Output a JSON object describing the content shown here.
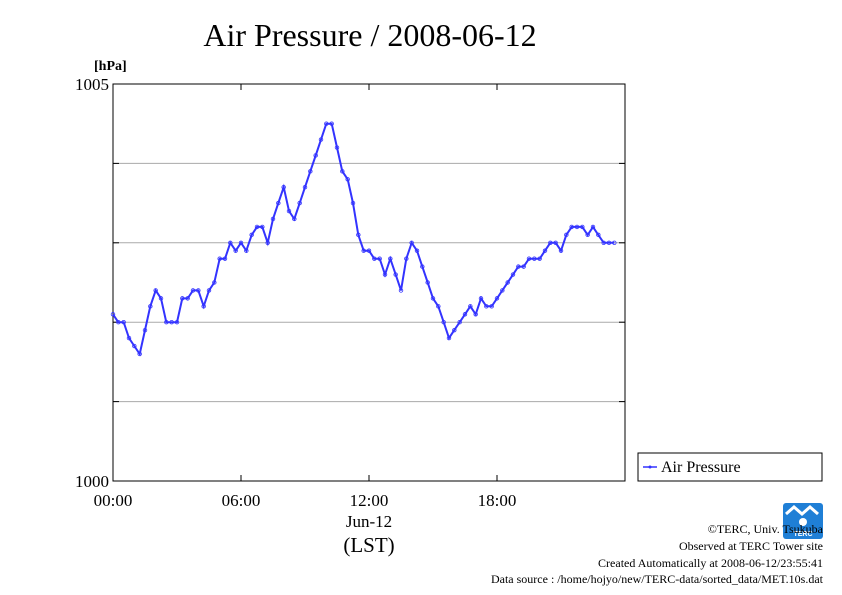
{
  "chart_data": {
    "type": "line",
    "title": "Air Pressure / 2008-06-12",
    "ylabel": "[hPa]",
    "xlabel": "(LST)",
    "date_label": "Jun-12",
    "ylim": [
      1000,
      1005
    ],
    "xlim": [
      0,
      23.5
    ],
    "y_ticks": [
      1000,
      1001,
      1002,
      1003,
      1004,
      1005
    ],
    "y_tick_labels": [
      "1000",
      "",
      "",
      "",
      "",
      "1005"
    ],
    "x_ticks": [
      0,
      6,
      12,
      18
    ],
    "x_tick_labels": [
      "00:00",
      "06:00",
      "12:00",
      "18:00"
    ],
    "grid": true,
    "legend": "right",
    "series": [
      {
        "name": "Air Pressure",
        "color": "#3333ff",
        "x": [
          0,
          0.25,
          0.5,
          0.75,
          1.0,
          1.25,
          1.5,
          1.75,
          2.0,
          2.25,
          2.5,
          2.75,
          3.0,
          3.25,
          3.5,
          3.75,
          4.0,
          4.25,
          4.5,
          4.75,
          5.0,
          5.25,
          5.5,
          5.75,
          6.0,
          6.25,
          6.5,
          6.75,
          7.0,
          7.25,
          7.5,
          7.75,
          8.0,
          8.25,
          8.5,
          8.75,
          9.0,
          9.25,
          9.5,
          9.75,
          10.0,
          10.25,
          10.5,
          10.75,
          11.0,
          11.25,
          11.5,
          11.75,
          12.0,
          12.25,
          12.5,
          12.75,
          13.0,
          13.25,
          13.5,
          13.75,
          14.0,
          14.25,
          14.5,
          14.75,
          15.0,
          15.25,
          15.5,
          15.75,
          16.0,
          16.25,
          16.5,
          16.75,
          17.0,
          17.25,
          17.5,
          17.75,
          18.0,
          18.25,
          18.5,
          18.75,
          19.0,
          19.25,
          19.5,
          19.75,
          20.0,
          20.25,
          20.5,
          20.75,
          21.0,
          21.25,
          21.5,
          21.75,
          22.0,
          22.25,
          22.5,
          22.75,
          23.0,
          23.25,
          23.5
        ],
        "values": [
          1002.1,
          1002.0,
          1002.0,
          1001.8,
          1001.7,
          1001.6,
          1001.9,
          1002.2,
          1002.4,
          1002.3,
          1002.0,
          1002.0,
          1002.0,
          1002.3,
          1002.3,
          1002.4,
          1002.4,
          1002.2,
          1002.4,
          1002.5,
          1002.8,
          1002.8,
          1003.0,
          1002.9,
          1003.0,
          1002.9,
          1003.1,
          1003.2,
          1003.2,
          1003.0,
          1003.3,
          1003.5,
          1003.7,
          1003.4,
          1003.3,
          1003.5,
          1003.7,
          1003.9,
          1004.1,
          1004.3,
          1004.5,
          1004.5,
          1004.2,
          1003.9,
          1003.8,
          1003.5,
          1003.1,
          1002.9,
          1002.9,
          1002.8,
          1002.8,
          1002.6,
          1002.8,
          1002.6,
          1002.4,
          1002.8,
          1003.0,
          1002.9,
          1002.7,
          1002.5,
          1002.3,
          1002.2,
          1002.0,
          1001.8,
          1001.9,
          1002.0,
          1002.1,
          1002.2,
          1002.1,
          1002.3,
          1002.2,
          1002.2,
          1002.3,
          1002.4,
          1002.5,
          1002.6,
          1002.7,
          1002.7,
          1002.8,
          1002.8,
          1002.8,
          1002.9,
          1003.0,
          1003.0,
          1002.9,
          1003.1,
          1003.2,
          1003.2,
          1003.2,
          1003.1,
          1003.2,
          1003.1,
          1003.0,
          1003.0,
          1003.0
        ]
      }
    ]
  },
  "footer": {
    "credit": "©TERC, Univ. Tsukuba",
    "observed": "Observed at TERC Tower site",
    "created": "Created Automatically at 2008-06-12/23:55:41",
    "source": "Data source : /home/hojyo/new/TERC-data/sorted_data/MET.10s.dat"
  },
  "logo": {
    "text": "TERC",
    "color": "#1f7fd6",
    "icon": "terc-logo-icon"
  }
}
